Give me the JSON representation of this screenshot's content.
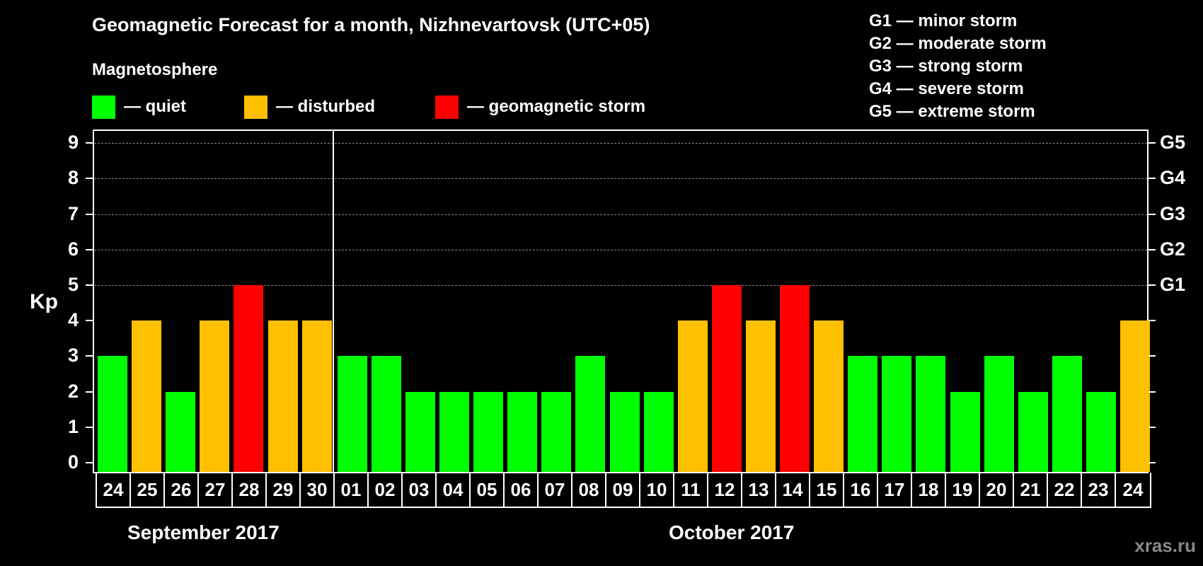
{
  "header": {
    "title": "Geomagnetic Forecast for a month, Nizhnevartovsk (UTC+05)",
    "subtitle": "Magnetosphere"
  },
  "legend": [
    {
      "label": "— quiet",
      "color": "#00ff00"
    },
    {
      "label": "— disturbed",
      "color": "#ffc000"
    },
    {
      "label": "— geomagnetic storm",
      "color": "#ff0000"
    }
  ],
  "g_scale": [
    "G1 — minor storm",
    "G2 — moderate storm",
    "G3 — strong storm",
    "G4 — severe storm",
    "G5 — extreme storm"
  ],
  "months": [
    "September 2017",
    "October 2017"
  ],
  "watermark": "xras.ru",
  "chart_data": {
    "type": "bar",
    "title": "Geomagnetic Forecast for a month, Nizhnevartovsk (UTC+05)",
    "xlabel": "",
    "ylabel": "Kp",
    "ylim": [
      0,
      9
    ],
    "yticks": [
      0,
      1,
      2,
      3,
      4,
      5,
      6,
      7,
      8,
      9
    ],
    "right_axis_labels": {
      "5": "G1",
      "6": "G2",
      "7": "G3",
      "8": "G4",
      "9": "G5"
    },
    "grid": "dashed horizontal at 5-9",
    "categories": [
      "24",
      "25",
      "26",
      "27",
      "28",
      "29",
      "30",
      "01",
      "02",
      "03",
      "04",
      "05",
      "06",
      "07",
      "08",
      "09",
      "10",
      "11",
      "12",
      "13",
      "14",
      "15",
      "16",
      "17",
      "18",
      "19",
      "20",
      "21",
      "22",
      "23",
      "24"
    ],
    "month_groups": [
      {
        "label": "September 2017",
        "days": [
          "24",
          "25",
          "26",
          "27",
          "28",
          "29",
          "30"
        ]
      },
      {
        "label": "October 2017",
        "days": [
          "01",
          "02",
          "03",
          "04",
          "05",
          "06",
          "07",
          "08",
          "09",
          "10",
          "11",
          "12",
          "13",
          "14",
          "15",
          "16",
          "17",
          "18",
          "19",
          "20",
          "21",
          "22",
          "23",
          "24"
        ]
      }
    ],
    "values": [
      3,
      4,
      2,
      4,
      5,
      4,
      4,
      3,
      3,
      2,
      2,
      2,
      2,
      2,
      3,
      2,
      2,
      4,
      5,
      4,
      5,
      4,
      3,
      3,
      3,
      2,
      3,
      2,
      3,
      2,
      4
    ],
    "status": [
      "quiet",
      "disturbed",
      "quiet",
      "disturbed",
      "storm",
      "disturbed",
      "disturbed",
      "quiet",
      "quiet",
      "quiet",
      "quiet",
      "quiet",
      "quiet",
      "quiet",
      "quiet",
      "quiet",
      "quiet",
      "disturbed",
      "storm",
      "disturbed",
      "storm",
      "disturbed",
      "quiet",
      "quiet",
      "quiet",
      "quiet",
      "quiet",
      "quiet",
      "quiet",
      "quiet",
      "disturbed"
    ],
    "colors": {
      "quiet": "#00ff00",
      "disturbed": "#ffc000",
      "storm": "#ff0000"
    },
    "legend": [
      "quiet",
      "disturbed",
      "geomagnetic storm"
    ]
  }
}
